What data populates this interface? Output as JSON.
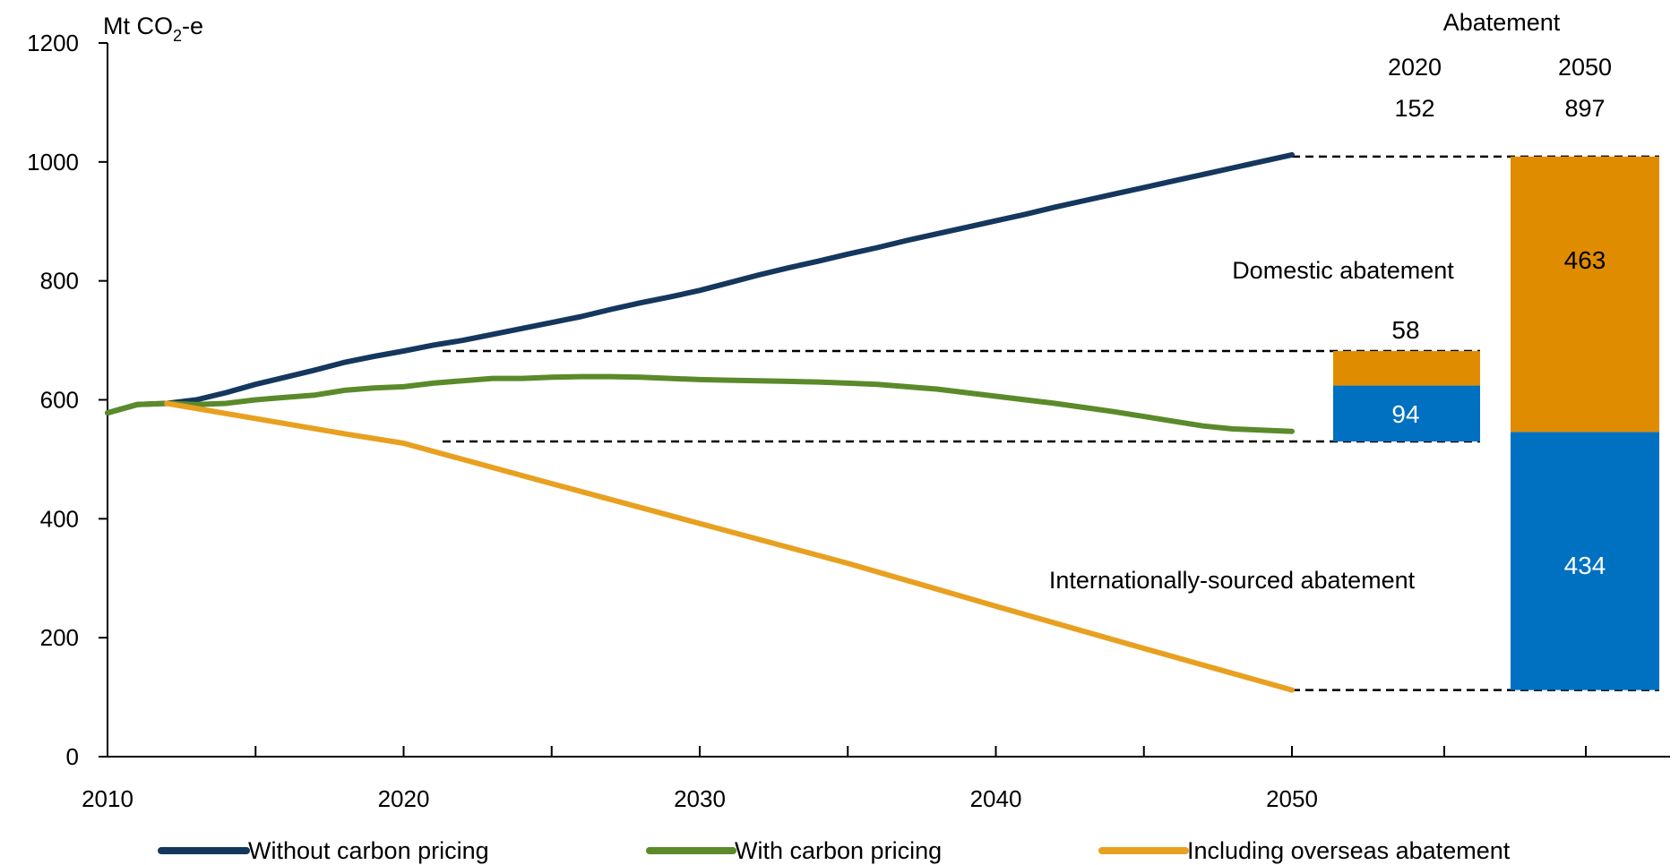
{
  "chart_data": {
    "type": "line",
    "ylabel": "Mt CO",
    "ylabel_sub": "2",
    "ylabel_suffix": "-e",
    "ylim": [
      0,
      1200
    ],
    "xlim": [
      2010,
      2050
    ],
    "y_ticks": [
      0,
      200,
      400,
      600,
      800,
      1000,
      1200
    ],
    "x_ticks": [
      2010,
      2020,
      2030,
      2040,
      2050
    ],
    "grid": false,
    "legend_position": "bottom",
    "colors": {
      "without": "#14375e",
      "with": "#5a8a2a",
      "overseas": "#e8a020",
      "domestic_bar": "#e08c00",
      "international_bar": "#0070c0"
    },
    "series": [
      {
        "name": "Without carbon pricing",
        "x": [
          2010,
          2011,
          2012,
          2013,
          2014,
          2015,
          2016,
          2017,
          2018,
          2019,
          2020,
          2021,
          2022,
          2023,
          2024,
          2025,
          2026,
          2027,
          2028,
          2029,
          2030,
          2031,
          2032,
          2033,
          2034,
          2035,
          2036,
          2037,
          2038,
          2039,
          2040,
          2041,
          2042,
          2043,
          2044,
          2045,
          2046,
          2047,
          2048,
          2049,
          2050
        ],
        "y": [
          578,
          592,
          594,
          600,
          612,
          626,
          638,
          650,
          663,
          673,
          682,
          692,
          700,
          710,
          720,
          730,
          740,
          752,
          763,
          773,
          784,
          797,
          810,
          822,
          833,
          845,
          856,
          868,
          879,
          890,
          901,
          912,
          924,
          935,
          946,
          957,
          968,
          979,
          990,
          1001,
          1012
        ]
      },
      {
        "name": "With carbon pricing",
        "x": [
          2010,
          2011,
          2012,
          2013,
          2014,
          2015,
          2016,
          2017,
          2018,
          2019,
          2020,
          2021,
          2022,
          2023,
          2024,
          2025,
          2026,
          2027,
          2028,
          2029,
          2030,
          2031,
          2032,
          2033,
          2034,
          2035,
          2036,
          2037,
          2038,
          2039,
          2040,
          2041,
          2042,
          2043,
          2044,
          2045,
          2046,
          2047,
          2048,
          2049,
          2050
        ],
        "y": [
          578,
          592,
          594,
          592,
          594,
          600,
          604,
          608,
          616,
          620,
          622,
          628,
          632,
          636,
          636,
          638,
          639,
          639,
          638,
          636,
          634,
          633,
          632,
          631,
          630,
          628,
          626,
          622,
          618,
          612,
          606,
          600,
          594,
          587,
          580,
          572,
          564,
          556,
          551,
          549,
          547
        ]
      },
      {
        "name": "Including overseas abatement",
        "x": [
          2012,
          2014,
          2016,
          2018,
          2020,
          2025,
          2030,
          2035,
          2040,
          2045,
          2050
        ],
        "y": [
          594,
          577,
          560,
          543,
          527,
          459,
          392,
          325,
          253,
          182,
          112
        ]
      }
    ],
    "bars": [
      {
        "year": "2020",
        "total": "152",
        "domestic": 58,
        "international": 94,
        "base": 530,
        "domestic_label": "58",
        "international_label": "94"
      },
      {
        "year": "2050",
        "total": "897",
        "domestic": 463,
        "international": 434,
        "base": 112,
        "domestic_label": "463",
        "international_label": "434"
      }
    ],
    "annotations": {
      "abatement_header": "Abatement",
      "domestic": "Domestic abatement",
      "international": "Internationally-sourced abatement"
    }
  }
}
